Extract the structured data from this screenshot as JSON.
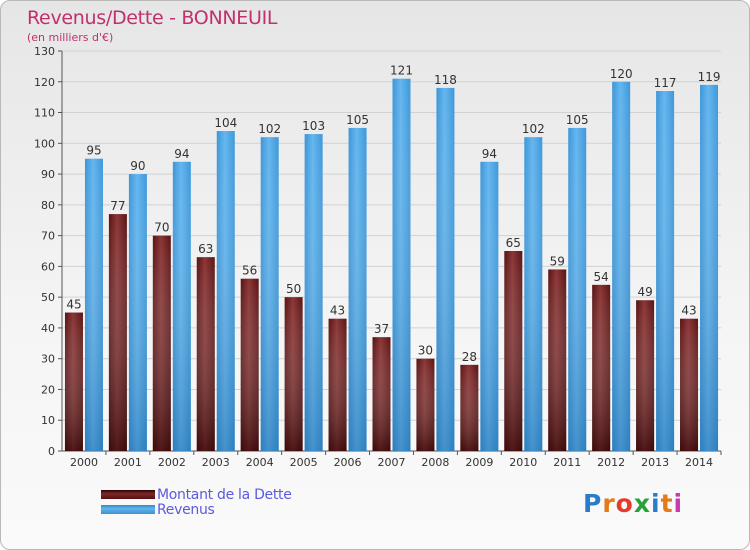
{
  "header": {
    "title": "Revenus/Dette - BONNEUIL",
    "subtitle": "(en milliers d'€)"
  },
  "chart_data": {
    "type": "bar",
    "title": "Revenus/Dette - BONNEUIL",
    "subtitle": "(en milliers d'€)",
    "categories": [
      "2000",
      "2001",
      "2002",
      "2003",
      "2004",
      "2005",
      "2006",
      "2007",
      "2008",
      "2009",
      "2010",
      "2011",
      "2012",
      "2013",
      "2014"
    ],
    "series": [
      {
        "name": "Montant de la Dette",
        "color": "#6b1a1a",
        "values": [
          45,
          77,
          70,
          63,
          56,
          50,
          43,
          37,
          30,
          28,
          65,
          59,
          54,
          49,
          43
        ]
      },
      {
        "name": "Revenus",
        "color": "#4aa3e3",
        "values": [
          95,
          90,
          94,
          104,
          102,
          103,
          105,
          121,
          118,
          94,
          102,
          105,
          120,
          117,
          119
        ]
      }
    ],
    "ylim": [
      0,
      130
    ],
    "yticks": [
      0,
      10,
      20,
      30,
      40,
      50,
      60,
      70,
      80,
      90,
      100,
      110,
      120,
      130
    ],
    "grid": true,
    "legend_position": "bottom-left"
  },
  "legend": {
    "items": [
      {
        "label": "Montant de la Dette"
      },
      {
        "label": "Revenus"
      }
    ]
  },
  "logo": {
    "letters": [
      "P",
      "r",
      "o",
      "x",
      "i",
      "t",
      "i"
    ]
  }
}
